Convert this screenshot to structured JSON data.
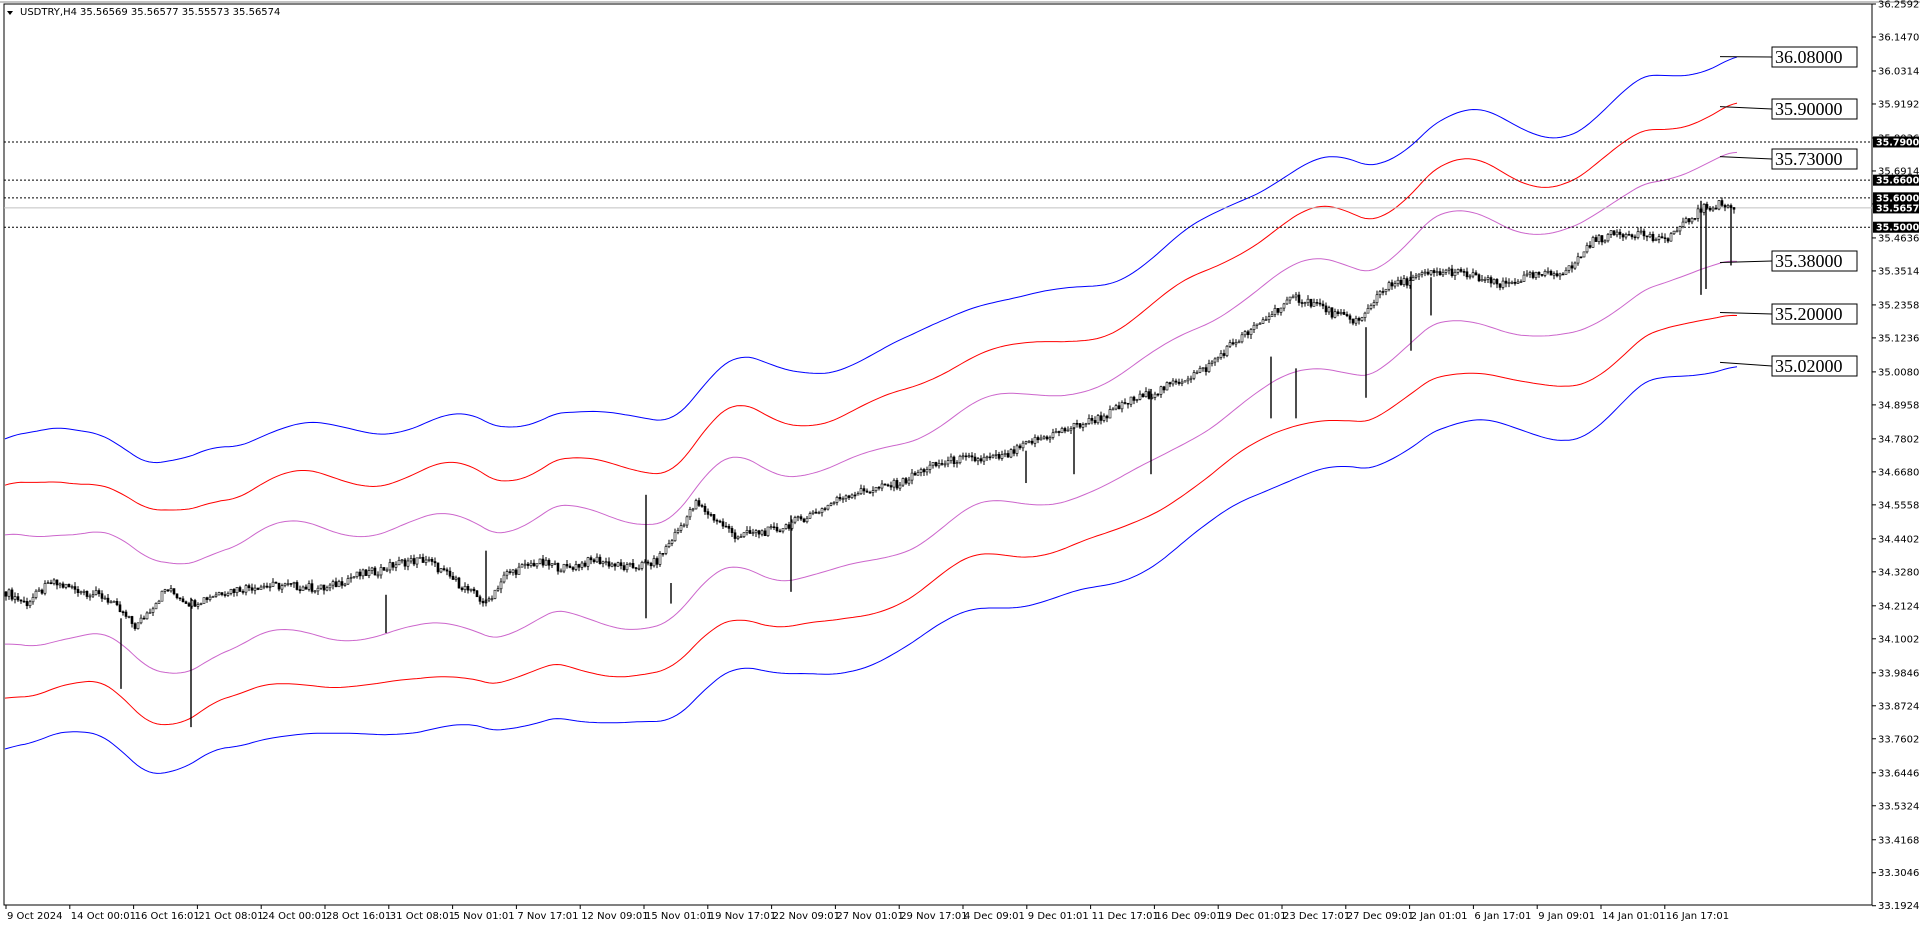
{
  "header": {
    "symbol": "USDTRY,H4",
    "ohlc": "35.56569 35.56577 35.55573 35.56574"
  },
  "chart_data": {
    "type": "candlestick",
    "title": "USDTRY,H4",
    "ylim": [
      33.1949,
      36.2592
    ],
    "y_ticks": [
      "36.25920",
      "36.14700",
      "36.03140",
      "35.91920",
      "35.80360",
      "35.69140",
      "35.57920",
      "35.46360",
      "35.35140",
      "35.23580",
      "35.12360",
      "35.00800",
      "34.89580",
      "34.78020",
      "34.66800",
      "34.55580",
      "34.44020",
      "34.32800",
      "34.21240",
      "34.10020",
      "33.98460",
      "33.87240",
      "33.76020",
      "33.64460",
      "33.53240",
      "33.41680",
      "33.30460",
      "33.19240"
    ],
    "x_ticks": [
      "9 Oct 2024",
      "14 Oct 00:01",
      "16 Oct 16:01",
      "21 Oct 08:01",
      "24 Oct 00:01",
      "28 Oct 16:01",
      "31 Oct 08:01",
      "5 Nov 01:01",
      "7 Nov 17:01",
      "12 Nov 09:01",
      "15 Nov 01:01",
      "19 Nov 17:01",
      "22 Nov 09:01",
      "27 Nov 01:01",
      "29 Nov 17:01",
      "4 Dec 09:01",
      "9 Dec 01:01",
      "11 Dec 17:01",
      "16 Dec 09:01",
      "19 Dec 01:01",
      "23 Dec 17:01",
      "27 Dec 09:01",
      "2 Jan 01:01",
      "6 Jan 17:01",
      "9 Jan 09:01",
      "14 Jan 01:01",
      "16 Jan 17:01"
    ],
    "current_price": "35.56574",
    "horizontal_levels": [
      {
        "label": "35.79000",
        "value": 35.79
      },
      {
        "label": "35.66000",
        "value": 35.66
      },
      {
        "label": "35.60000",
        "value": 35.6
      },
      {
        "label": "35.50000",
        "value": 35.5
      }
    ],
    "band_labels": [
      {
        "label": "36.08000",
        "value": 36.08,
        "color": "#0000ff"
      },
      {
        "label": "35.90000",
        "value": 35.9,
        "color": "#ff0000"
      },
      {
        "label": "35.73000",
        "value": 35.73,
        "color": "#cc66cc"
      },
      {
        "label": "35.38000",
        "value": 35.38,
        "color": "#cc66cc"
      },
      {
        "label": "35.20000",
        "value": 35.2,
        "color": "#ff0000"
      },
      {
        "label": "35.02000",
        "value": 35.02,
        "color": "#0000ff"
      }
    ],
    "price_path": [
      [
        0,
        34.26
      ],
      [
        20,
        34.22
      ],
      [
        45,
        34.29
      ],
      [
        70,
        34.27
      ],
      [
        100,
        34.24
      ],
      [
        130,
        34.14
      ],
      [
        160,
        34.27
      ],
      [
        185,
        34.22
      ],
      [
        215,
        34.26
      ],
      [
        250,
        34.28
      ],
      [
        285,
        34.28
      ],
      [
        320,
        34.27
      ],
      [
        345,
        34.31
      ],
      [
        370,
        34.33
      ],
      [
        395,
        34.36
      ],
      [
        420,
        34.37
      ],
      [
        440,
        34.32
      ],
      [
        460,
        34.27
      ],
      [
        480,
        34.22
      ],
      [
        500,
        34.32
      ],
      [
        530,
        34.36
      ],
      [
        560,
        34.34
      ],
      [
        590,
        34.37
      ],
      [
        620,
        34.34
      ],
      [
        650,
        34.36
      ],
      [
        670,
        34.46
      ],
      [
        690,
        34.56
      ],
      [
        705,
        34.52
      ],
      [
        730,
        34.45
      ],
      [
        750,
        34.46
      ],
      [
        770,
        34.47
      ],
      [
        790,
        34.5
      ],
      [
        815,
        34.54
      ],
      [
        840,
        34.59
      ],
      [
        870,
        34.61
      ],
      [
        895,
        34.63
      ],
      [
        920,
        34.68
      ],
      [
        950,
        34.71
      ],
      [
        975,
        34.71
      ],
      [
        1000,
        34.72
      ],
      [
        1025,
        34.77
      ],
      [
        1050,
        34.8
      ],
      [
        1075,
        34.83
      ],
      [
        1100,
        34.86
      ],
      [
        1125,
        34.91
      ],
      [
        1150,
        34.94
      ],
      [
        1175,
        34.98
      ],
      [
        1200,
        35.02
      ],
      [
        1225,
        35.1
      ],
      [
        1250,
        35.16
      ],
      [
        1270,
        35.22
      ],
      [
        1290,
        35.26
      ],
      [
        1310,
        35.24
      ],
      [
        1330,
        35.2
      ],
      [
        1355,
        35.18
      ],
      [
        1375,
        35.29
      ],
      [
        1395,
        35.31
      ],
      [
        1420,
        35.34
      ],
      [
        1445,
        35.35
      ],
      [
        1470,
        35.33
      ],
      [
        1495,
        35.3
      ],
      [
        1520,
        35.33
      ],
      [
        1545,
        35.34
      ],
      [
        1565,
        35.36
      ],
      [
        1585,
        35.45
      ],
      [
        1610,
        35.48
      ],
      [
        1635,
        35.48
      ],
      [
        1655,
        35.45
      ],
      [
        1675,
        35.5
      ],
      [
        1695,
        35.56
      ],
      [
        1715,
        35.58
      ],
      [
        1730,
        35.56
      ]
    ],
    "spikes": [
      [
        115,
        34.17,
        33.93
      ],
      [
        185,
        34.24,
        33.8
      ],
      [
        380,
        34.25,
        34.12
      ],
      [
        480,
        34.4,
        34.22
      ],
      [
        640,
        34.59,
        34.17
      ],
      [
        665,
        34.29,
        34.22
      ],
      [
        785,
        34.52,
        34.26
      ],
      [
        1020,
        34.74,
        34.63
      ],
      [
        1068,
        34.82,
        34.66
      ],
      [
        1145,
        34.95,
        34.66
      ],
      [
        1265,
        35.06,
        34.85
      ],
      [
        1290,
        35.02,
        34.85
      ],
      [
        1360,
        35.16,
        34.92
      ],
      [
        1405,
        35.35,
        35.08
      ],
      [
        1425,
        35.33,
        35.2
      ],
      [
        1695,
        35.59,
        35.27
      ],
      [
        1700,
        35.58,
        35.29
      ],
      [
        1725,
        35.57,
        35.37
      ]
    ],
    "bands": [
      {
        "name": "upper-3",
        "color": "#0000ff",
        "offset": 0.52
      },
      {
        "name": "upper-2",
        "color": "#ff0000",
        "offset": 0.35
      },
      {
        "name": "upper-1",
        "color": "#cc66cc",
        "offset": 0.18
      },
      {
        "name": "lower-1",
        "color": "#cc66cc",
        "offset": -0.18
      },
      {
        "name": "lower-2",
        "color": "#ff0000",
        "offset": -0.35
      },
      {
        "name": "lower-3",
        "color": "#0000ff",
        "offset": -0.52
      }
    ],
    "grid": false,
    "background": "#ffffff"
  }
}
